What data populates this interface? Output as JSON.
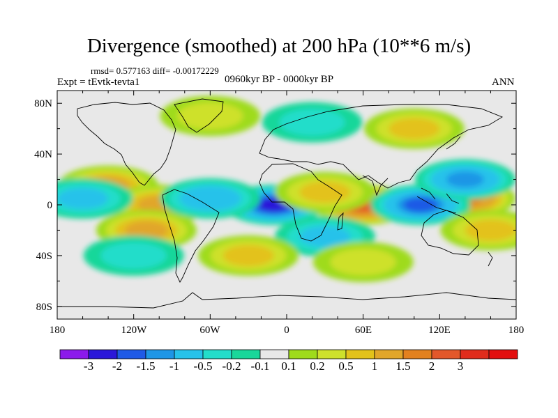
{
  "title": "Divergence (smoothed) at 200 hPa (10**6 m/s)",
  "stats": "rmsd= 0.577163 diff= -0.00172229",
  "experiment": "Expt = tEvtk-tevta1",
  "period": "0960kyr BP - 0000kyr BP",
  "season": "ANN",
  "map": {
    "projection": "cylindrical equidistant",
    "lon_range": [
      -180,
      180
    ],
    "lat_range": [
      -90,
      90
    ],
    "y_ticks": [
      "80N",
      "40N",
      "0",
      "40S",
      "80S"
    ],
    "x_ticks": [
      "180",
      "120W",
      "60W",
      "0",
      "60E",
      "120E",
      "180"
    ]
  },
  "colorbar": {
    "colors": [
      "#8c1aeb",
      "#2b17d9",
      "#1f5ae6",
      "#1e96e6",
      "#27c2ea",
      "#23ddca",
      "#19d79a",
      "#e8e8e8",
      "#9fdb1b",
      "#cee12c",
      "#e3c21a",
      "#e1a62a",
      "#e3811e",
      "#e3582a",
      "#e02c1c",
      "#e30f0f"
    ],
    "labels": [
      "-3",
      "-2",
      "-1.5",
      "-1",
      "-0.5",
      "-0.2",
      "-0.1",
      "0.1",
      "0.2",
      "0.5",
      "1",
      "1.5",
      "2",
      "3"
    ]
  },
  "anomalies": [
    {
      "lon": -10,
      "lat": 0,
      "value": -2.5
    },
    {
      "lon": 60,
      "lat": 0,
      "value": 2.5
    },
    {
      "lon": 140,
      "lat": 5,
      "value": 2.0
    },
    {
      "lon": 105,
      "lat": 0,
      "value": -2.0
    },
    {
      "lon": -140,
      "lat": 15,
      "value": 1.0
    },
    {
      "lon": -100,
      "lat": 0,
      "value": 1.0
    },
    {
      "lon": -60,
      "lat": 5,
      "value": -1.0
    },
    {
      "lon": -110,
      "lat": -20,
      "value": 1.0
    },
    {
      "lon": 30,
      "lat": 10,
      "value": 0.8
    },
    {
      "lon": 30,
      "lat": -25,
      "value": -0.8
    },
    {
      "lon": 140,
      "lat": 20,
      "value": -1.5
    },
    {
      "lon": 160,
      "lat": -20,
      "value": 0.8
    },
    {
      "lon": -160,
      "lat": 5,
      "value": -0.8
    },
    {
      "lon": -30,
      "lat": -40,
      "value": 0.8
    },
    {
      "lon": 60,
      "lat": -45,
      "value": 0.5
    },
    {
      "lon": -120,
      "lat": -40,
      "value": -0.5
    },
    {
      "lon": 100,
      "lat": 60,
      "value": 0.8
    },
    {
      "lon": -60,
      "lat": 70,
      "value": 0.5
    },
    {
      "lon": 20,
      "lat": 65,
      "value": -0.5
    }
  ]
}
